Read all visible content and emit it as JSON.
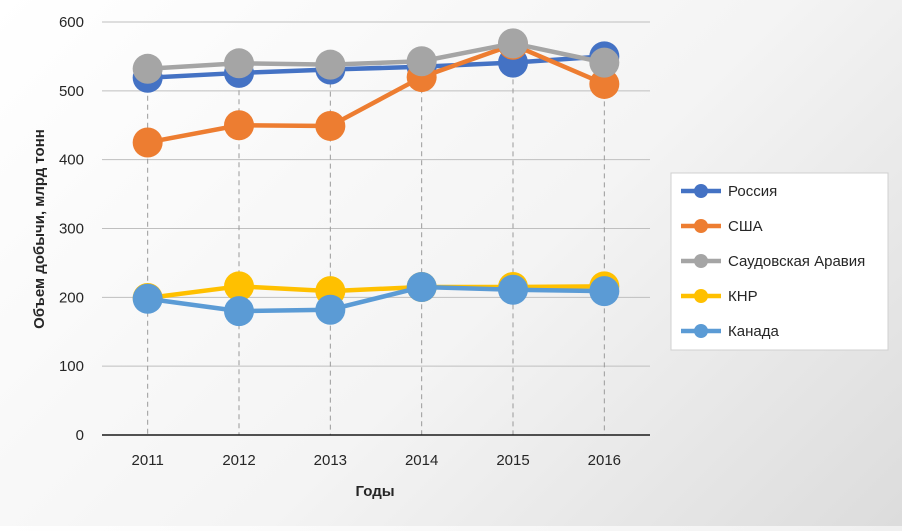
{
  "chart_data": {
    "type": "line",
    "title": "",
    "xlabel": "Годы",
    "ylabel": "Объем добычи, млрд тонн",
    "categories": [
      "2011",
      "2012",
      "2013",
      "2014",
      "2015",
      "2016"
    ],
    "ylim": [
      0,
      600
    ],
    "yticks": [
      0,
      100,
      200,
      300,
      400,
      500,
      600
    ],
    "grid": "horizontal",
    "drop_lines": true,
    "legend_position": "right",
    "series": [
      {
        "name": "Россия",
        "color": "#4472C4",
        "values": [
          519,
          526,
          531,
          535,
          541,
          550
        ]
      },
      {
        "name": "США",
        "color": "#ED7D31",
        "values": [
          425,
          450,
          449,
          520,
          567,
          510
        ]
      },
      {
        "name": "Саудовская Аравия",
        "color": "#A5A5A5",
        "values": [
          532,
          540,
          538,
          543,
          569,
          541
        ]
      },
      {
        "name": "КНР",
        "color": "#FFC000",
        "values": [
          199,
          216,
          209,
          215,
          215,
          216
        ]
      },
      {
        "name": "Канада",
        "color": "#5B9BD5",
        "values": [
          198,
          180,
          182,
          215,
          211,
          209
        ]
      }
    ]
  }
}
